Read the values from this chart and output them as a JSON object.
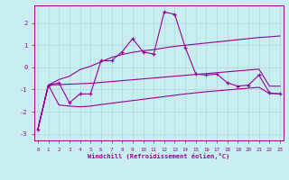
{
  "xlabel": "Windchill (Refroidissement éolien,°C)",
  "background_color": "#c8eef0",
  "grid_color": "#b0dde0",
  "line_color": "#990099",
  "x": [
    0,
    1,
    2,
    3,
    4,
    5,
    6,
    7,
    8,
    9,
    10,
    11,
    12,
    13,
    14,
    15,
    16,
    17,
    18,
    19,
    20,
    21,
    22,
    23
  ],
  "y_main": [
    -2.8,
    -0.8,
    -0.7,
    -1.6,
    -1.2,
    -1.2,
    0.3,
    0.3,
    0.7,
    1.3,
    0.7,
    0.6,
    2.5,
    2.4,
    0.9,
    -0.3,
    -0.35,
    -0.3,
    -0.7,
    -0.85,
    -0.8,
    -0.35,
    -1.15,
    -1.2
  ],
  "y_upper": [
    -2.8,
    -0.8,
    -0.55,
    -0.4,
    -0.1,
    0.05,
    0.25,
    0.45,
    0.58,
    0.68,
    0.75,
    0.8,
    0.88,
    0.95,
    1.0,
    1.05,
    1.1,
    1.15,
    1.2,
    1.25,
    1.3,
    1.35,
    1.38,
    1.42
  ],
  "y_lower": [
    -2.8,
    -0.8,
    -1.7,
    -1.75,
    -1.78,
    -1.75,
    -1.68,
    -1.62,
    -1.56,
    -1.5,
    -1.44,
    -1.38,
    -1.32,
    -1.26,
    -1.2,
    -1.15,
    -1.1,
    -1.06,
    -1.02,
    -0.98,
    -0.94,
    -0.9,
    -1.18,
    -1.2
  ],
  "y_trend": [
    -2.8,
    -0.8,
    -0.78,
    -0.76,
    -0.74,
    -0.72,
    -0.68,
    -0.64,
    -0.6,
    -0.56,
    -0.52,
    -0.48,
    -0.44,
    -0.4,
    -0.36,
    -0.32,
    -0.28,
    -0.24,
    -0.2,
    -0.16,
    -0.12,
    -0.08,
    -0.85,
    -0.85
  ],
  "ylim": [
    -3.3,
    2.8
  ],
  "yticks": [
    -3,
    -2,
    -1,
    0,
    1,
    2
  ],
  "xlim": [
    -0.3,
    23.3
  ],
  "xticks": [
    0,
    1,
    2,
    3,
    4,
    5,
    6,
    7,
    8,
    9,
    10,
    11,
    12,
    13,
    14,
    15,
    16,
    17,
    18,
    19,
    20,
    21,
    22,
    23
  ]
}
